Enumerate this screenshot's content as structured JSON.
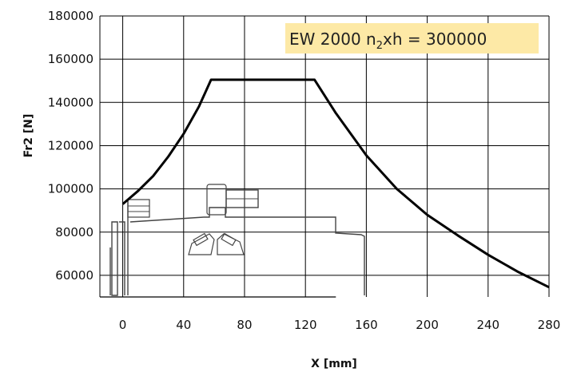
{
  "chart_data": {
    "type": "line",
    "xlabel": "X [mm]",
    "ylabel": "Fr2 [N]",
    "xlim": [
      -15,
      280
    ],
    "ylim": [
      50000,
      180000
    ],
    "x_ticks": [
      0,
      40,
      80,
      120,
      160,
      200,
      240,
      280
    ],
    "y_ticks": [
      60000,
      80000,
      100000,
      120000,
      140000,
      160000,
      180000
    ],
    "grid": true,
    "annotation": {
      "prefix": "EW 2000 n",
      "subscript": "2",
      "suffix": "xh = 300000",
      "background": "#fde9a6"
    },
    "line_color": "#000000",
    "series": [
      {
        "x": [
          0,
          10,
          20,
          30,
          40,
          50,
          58,
          70,
          80,
          90,
          100,
          110,
          120,
          126,
          140,
          160,
          180,
          200,
          220,
          240,
          260,
          280
        ],
        "values": [
          93000,
          99000,
          106000,
          115000,
          125500,
          138000,
          150500,
          150500,
          150500,
          150500,
          150500,
          150500,
          150500,
          150500,
          135000,
          115500,
          100000,
          88000,
          78500,
          69500,
          61500,
          54500
        ]
      }
    ]
  },
  "diagram": {
    "description_icon": "bearing-shaft-cross-section-icon"
  }
}
